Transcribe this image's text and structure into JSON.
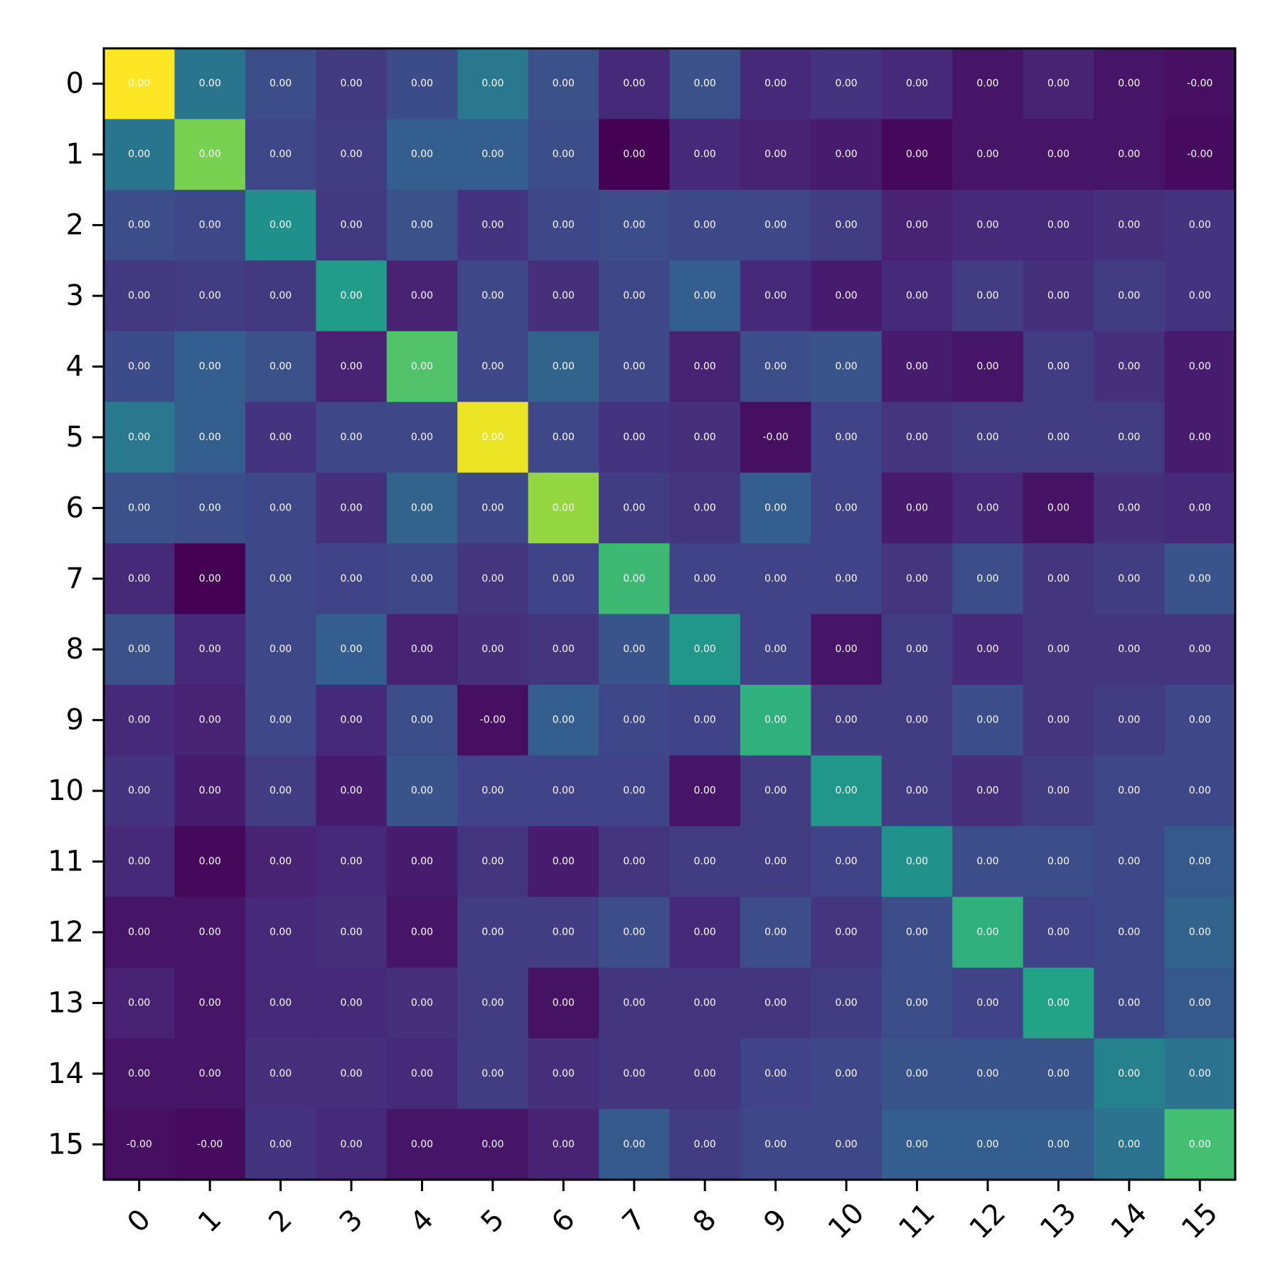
{
  "chart_data": {
    "type": "heatmap",
    "title": "",
    "xlabel": "",
    "ylabel": "",
    "colormap": "viridis",
    "x_categories": [
      "0",
      "1",
      "2",
      "3",
      "4",
      "5",
      "6",
      "7",
      "8",
      "9",
      "10",
      "11",
      "12",
      "13",
      "14",
      "15"
    ],
    "y_categories": [
      "0",
      "1",
      "2",
      "3",
      "4",
      "5",
      "6",
      "7",
      "8",
      "9",
      "10",
      "11",
      "12",
      "13",
      "14",
      "15"
    ],
    "x_tick_rotation_deg": 45,
    "grid": false,
    "legend": "none",
    "cell_text": [
      [
        "0.00",
        "0.00",
        "0.00",
        "0.00",
        "0.00",
        "0.00",
        "0.00",
        "0.00",
        "0.00",
        "0.00",
        "0.00",
        "0.00",
        "0.00",
        "0.00",
        "0.00",
        "-0.00"
      ],
      [
        "0.00",
        "0.00",
        "0.00",
        "0.00",
        "0.00",
        "0.00",
        "0.00",
        "0.00",
        "0.00",
        "0.00",
        "0.00",
        "0.00",
        "0.00",
        "0.00",
        "0.00",
        "-0.00"
      ],
      [
        "0.00",
        "0.00",
        "0.00",
        "0.00",
        "0.00",
        "0.00",
        "0.00",
        "0.00",
        "0.00",
        "0.00",
        "0.00",
        "0.00",
        "0.00",
        "0.00",
        "0.00",
        "0.00"
      ],
      [
        "0.00",
        "0.00",
        "0.00",
        "0.00",
        "0.00",
        "0.00",
        "0.00",
        "0.00",
        "0.00",
        "0.00",
        "0.00",
        "0.00",
        "0.00",
        "0.00",
        "0.00",
        "0.00"
      ],
      [
        "0.00",
        "0.00",
        "0.00",
        "0.00",
        "0.00",
        "0.00",
        "0.00",
        "0.00",
        "0.00",
        "0.00",
        "0.00",
        "0.00",
        "0.00",
        "0.00",
        "0.00",
        "0.00"
      ],
      [
        "0.00",
        "0.00",
        "0.00",
        "0.00",
        "0.00",
        "0.00",
        "0.00",
        "0.00",
        "0.00",
        "-0.00",
        "0.00",
        "0.00",
        "0.00",
        "0.00",
        "0.00",
        "0.00"
      ],
      [
        "0.00",
        "0.00",
        "0.00",
        "0.00",
        "0.00",
        "0.00",
        "0.00",
        "0.00",
        "0.00",
        "0.00",
        "0.00",
        "0.00",
        "0.00",
        "0.00",
        "0.00",
        "0.00"
      ],
      [
        "0.00",
        "0.00",
        "0.00",
        "0.00",
        "0.00",
        "0.00",
        "0.00",
        "0.00",
        "0.00",
        "0.00",
        "0.00",
        "0.00",
        "0.00",
        "0.00",
        "0.00",
        "0.00"
      ],
      [
        "0.00",
        "0.00",
        "0.00",
        "0.00",
        "0.00",
        "0.00",
        "0.00",
        "0.00",
        "0.00",
        "0.00",
        "0.00",
        "0.00",
        "0.00",
        "0.00",
        "0.00",
        "0.00"
      ],
      [
        "0.00",
        "0.00",
        "0.00",
        "0.00",
        "0.00",
        "-0.00",
        "0.00",
        "0.00",
        "0.00",
        "0.00",
        "0.00",
        "0.00",
        "0.00",
        "0.00",
        "0.00",
        "0.00"
      ],
      [
        "0.00",
        "0.00",
        "0.00",
        "0.00",
        "0.00",
        "0.00",
        "0.00",
        "0.00",
        "0.00",
        "0.00",
        "0.00",
        "0.00",
        "0.00",
        "0.00",
        "0.00",
        "0.00"
      ],
      [
        "0.00",
        "0.00",
        "0.00",
        "0.00",
        "0.00",
        "0.00",
        "0.00",
        "0.00",
        "0.00",
        "0.00",
        "0.00",
        "0.00",
        "0.00",
        "0.00",
        "0.00",
        "0.00"
      ],
      [
        "0.00",
        "0.00",
        "0.00",
        "0.00",
        "0.00",
        "0.00",
        "0.00",
        "0.00",
        "0.00",
        "0.00",
        "0.00",
        "0.00",
        "0.00",
        "0.00",
        "0.00",
        "0.00"
      ],
      [
        "0.00",
        "0.00",
        "0.00",
        "0.00",
        "0.00",
        "0.00",
        "0.00",
        "0.00",
        "0.00",
        "0.00",
        "0.00",
        "0.00",
        "0.00",
        "0.00",
        "0.00",
        "0.00"
      ],
      [
        "0.00",
        "0.00",
        "0.00",
        "0.00",
        "0.00",
        "0.00",
        "0.00",
        "0.00",
        "0.00",
        "0.00",
        "0.00",
        "0.00",
        "0.00",
        "0.00",
        "0.00",
        "0.00"
      ],
      [
        "-0.00",
        "-0.00",
        "0.00",
        "0.00",
        "0.00",
        "0.00",
        "0.00",
        "0.00",
        "0.00",
        "0.00",
        "0.00",
        "0.00",
        "0.00",
        "0.00",
        "0.00",
        "0.00"
      ]
    ],
    "relative_intensity": [
      [
        1.0,
        0.39,
        0.24,
        0.17,
        0.23,
        0.4,
        0.25,
        0.12,
        0.25,
        0.12,
        0.15,
        0.12,
        0.06,
        0.1,
        0.06,
        0.04
      ],
      [
        0.39,
        0.8,
        0.22,
        0.18,
        0.3,
        0.3,
        0.24,
        0.0,
        0.12,
        0.1,
        0.08,
        0.02,
        0.06,
        0.06,
        0.06,
        0.03
      ],
      [
        0.24,
        0.22,
        0.5,
        0.17,
        0.25,
        0.15,
        0.22,
        0.24,
        0.22,
        0.22,
        0.18,
        0.1,
        0.12,
        0.12,
        0.14,
        0.15
      ],
      [
        0.17,
        0.18,
        0.17,
        0.55,
        0.1,
        0.22,
        0.14,
        0.22,
        0.3,
        0.12,
        0.08,
        0.12,
        0.18,
        0.14,
        0.18,
        0.15
      ],
      [
        0.23,
        0.3,
        0.25,
        0.1,
        0.72,
        0.22,
        0.32,
        0.22,
        0.1,
        0.24,
        0.26,
        0.08,
        0.06,
        0.18,
        0.14,
        0.08
      ],
      [
        0.4,
        0.3,
        0.15,
        0.22,
        0.22,
        0.97,
        0.22,
        0.15,
        0.14,
        0.04,
        0.2,
        0.16,
        0.18,
        0.18,
        0.18,
        0.08
      ],
      [
        0.25,
        0.24,
        0.22,
        0.14,
        0.32,
        0.22,
        0.84,
        0.18,
        0.16,
        0.3,
        0.2,
        0.08,
        0.12,
        0.05,
        0.14,
        0.12
      ],
      [
        0.12,
        0.0,
        0.22,
        0.2,
        0.22,
        0.16,
        0.2,
        0.68,
        0.2,
        0.2,
        0.2,
        0.16,
        0.24,
        0.16,
        0.18,
        0.26
      ],
      [
        0.25,
        0.12,
        0.22,
        0.3,
        0.1,
        0.14,
        0.16,
        0.26,
        0.53,
        0.2,
        0.06,
        0.18,
        0.12,
        0.16,
        0.16,
        0.16
      ],
      [
        0.12,
        0.1,
        0.22,
        0.12,
        0.24,
        0.04,
        0.3,
        0.22,
        0.2,
        0.64,
        0.18,
        0.18,
        0.24,
        0.16,
        0.18,
        0.22
      ],
      [
        0.15,
        0.08,
        0.18,
        0.08,
        0.26,
        0.2,
        0.2,
        0.2,
        0.06,
        0.18,
        0.53,
        0.18,
        0.14,
        0.18,
        0.22,
        0.22
      ],
      [
        0.12,
        0.02,
        0.1,
        0.12,
        0.08,
        0.16,
        0.08,
        0.16,
        0.18,
        0.18,
        0.2,
        0.51,
        0.24,
        0.24,
        0.22,
        0.28
      ],
      [
        0.06,
        0.06,
        0.12,
        0.14,
        0.06,
        0.18,
        0.18,
        0.24,
        0.12,
        0.24,
        0.16,
        0.24,
        0.64,
        0.2,
        0.22,
        0.32
      ],
      [
        0.1,
        0.06,
        0.12,
        0.12,
        0.14,
        0.18,
        0.05,
        0.16,
        0.16,
        0.16,
        0.18,
        0.24,
        0.2,
        0.58,
        0.22,
        0.28
      ],
      [
        0.06,
        0.06,
        0.14,
        0.14,
        0.12,
        0.18,
        0.14,
        0.16,
        0.16,
        0.2,
        0.22,
        0.26,
        0.26,
        0.26,
        0.44,
        0.38
      ],
      [
        0.04,
        0.03,
        0.15,
        0.12,
        0.06,
        0.06,
        0.1,
        0.28,
        0.18,
        0.22,
        0.22,
        0.3,
        0.3,
        0.3,
        0.38,
        0.7
      ]
    ]
  }
}
